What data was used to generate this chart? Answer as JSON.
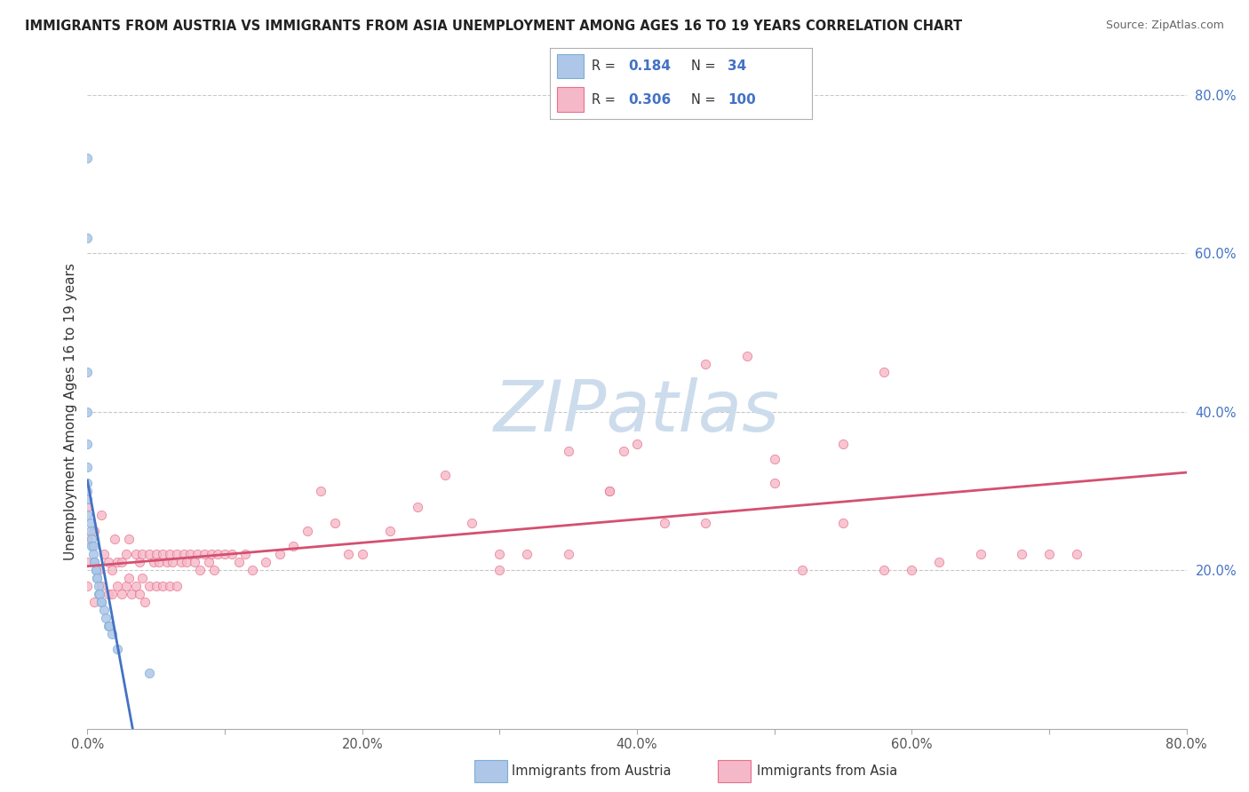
{
  "title": "IMMIGRANTS FROM AUSTRIA VS IMMIGRANTS FROM ASIA UNEMPLOYMENT AMONG AGES 16 TO 19 YEARS CORRELATION CHART",
  "source": "Source: ZipAtlas.com",
  "ylabel": "Unemployment Among Ages 16 to 19 years",
  "xlim": [
    0.0,
    0.8
  ],
  "ylim": [
    0.0,
    0.8
  ],
  "xticks": [
    0.0,
    0.1,
    0.2,
    0.3,
    0.4,
    0.5,
    0.6,
    0.7,
    0.8
  ],
  "xticklabels": [
    "0.0%",
    "",
    "20.0%",
    "",
    "40.0%",
    "",
    "60.0%",
    "",
    "80.0%"
  ],
  "right_yticks": [
    0.2,
    0.4,
    0.6,
    0.8
  ],
  "right_yticklabels": [
    "20.0%",
    "40.0%",
    "60.0%",
    "80.0%"
  ],
  "grid_yticks": [
    0.2,
    0.4,
    0.6,
    0.8
  ],
  "austria_color": "#aec6e8",
  "austria_edge": "#7bafd4",
  "asia_color": "#f5b8c8",
  "asia_edge": "#e8708a",
  "austria_R": "0.184",
  "austria_N": "34",
  "asia_R": "0.306",
  "asia_N": "100",
  "austria_line_color": "#4472c4",
  "asia_line_color": "#d45070",
  "watermark_color": "#ccdcec",
  "austria_scatter_x": [
    0.0,
    0.0,
    0.0,
    0.0,
    0.0,
    0.0,
    0.0,
    0.0,
    0.0,
    0.0,
    0.002,
    0.002,
    0.003,
    0.003,
    0.004,
    0.004,
    0.005,
    0.005,
    0.006,
    0.006,
    0.007,
    0.007,
    0.008,
    0.008,
    0.009,
    0.01,
    0.01,
    0.012,
    0.013,
    0.015,
    0.016,
    0.018,
    0.022,
    0.045
  ],
  "austria_scatter_y": [
    0.72,
    0.62,
    0.45,
    0.4,
    0.36,
    0.33,
    0.31,
    0.3,
    0.29,
    0.27,
    0.26,
    0.25,
    0.24,
    0.23,
    0.23,
    0.22,
    0.21,
    0.21,
    0.2,
    0.2,
    0.19,
    0.19,
    0.18,
    0.17,
    0.17,
    0.16,
    0.16,
    0.15,
    0.14,
    0.13,
    0.13,
    0.12,
    0.1,
    0.07
  ],
  "asia_scatter_x": [
    0.0,
    0.0,
    0.0,
    0.0,
    0.005,
    0.005,
    0.008,
    0.01,
    0.01,
    0.012,
    0.015,
    0.015,
    0.018,
    0.018,
    0.02,
    0.022,
    0.022,
    0.025,
    0.025,
    0.028,
    0.028,
    0.03,
    0.03,
    0.032,
    0.035,
    0.035,
    0.038,
    0.038,
    0.04,
    0.04,
    0.042,
    0.045,
    0.045,
    0.048,
    0.05,
    0.05,
    0.052,
    0.055,
    0.055,
    0.058,
    0.06,
    0.06,
    0.062,
    0.065,
    0.065,
    0.068,
    0.07,
    0.072,
    0.075,
    0.078,
    0.08,
    0.082,
    0.085,
    0.088,
    0.09,
    0.092,
    0.095,
    0.1,
    0.105,
    0.11,
    0.115,
    0.12,
    0.13,
    0.14,
    0.15,
    0.16,
    0.17,
    0.18,
    0.19,
    0.2,
    0.22,
    0.24,
    0.26,
    0.28,
    0.3,
    0.32,
    0.35,
    0.38,
    0.39,
    0.4,
    0.42,
    0.45,
    0.48,
    0.5,
    0.52,
    0.55,
    0.58,
    0.6,
    0.62,
    0.65,
    0.68,
    0.7,
    0.72,
    0.58,
    0.55,
    0.5,
    0.45,
    0.38,
    0.35,
    0.3
  ],
  "asia_scatter_y": [
    0.28,
    0.24,
    0.21,
    0.18,
    0.25,
    0.16,
    0.2,
    0.27,
    0.18,
    0.22,
    0.21,
    0.17,
    0.2,
    0.17,
    0.24,
    0.21,
    0.18,
    0.21,
    0.17,
    0.22,
    0.18,
    0.24,
    0.19,
    0.17,
    0.22,
    0.18,
    0.21,
    0.17,
    0.22,
    0.19,
    0.16,
    0.22,
    0.18,
    0.21,
    0.22,
    0.18,
    0.21,
    0.22,
    0.18,
    0.21,
    0.22,
    0.18,
    0.21,
    0.22,
    0.18,
    0.21,
    0.22,
    0.21,
    0.22,
    0.21,
    0.22,
    0.2,
    0.22,
    0.21,
    0.22,
    0.2,
    0.22,
    0.22,
    0.22,
    0.21,
    0.22,
    0.2,
    0.21,
    0.22,
    0.23,
    0.25,
    0.3,
    0.26,
    0.22,
    0.22,
    0.25,
    0.28,
    0.32,
    0.26,
    0.22,
    0.22,
    0.35,
    0.3,
    0.35,
    0.36,
    0.26,
    0.46,
    0.47,
    0.34,
    0.2,
    0.26,
    0.2,
    0.2,
    0.21,
    0.22,
    0.22,
    0.22,
    0.22,
    0.45,
    0.36,
    0.31,
    0.26,
    0.3,
    0.22,
    0.2
  ]
}
